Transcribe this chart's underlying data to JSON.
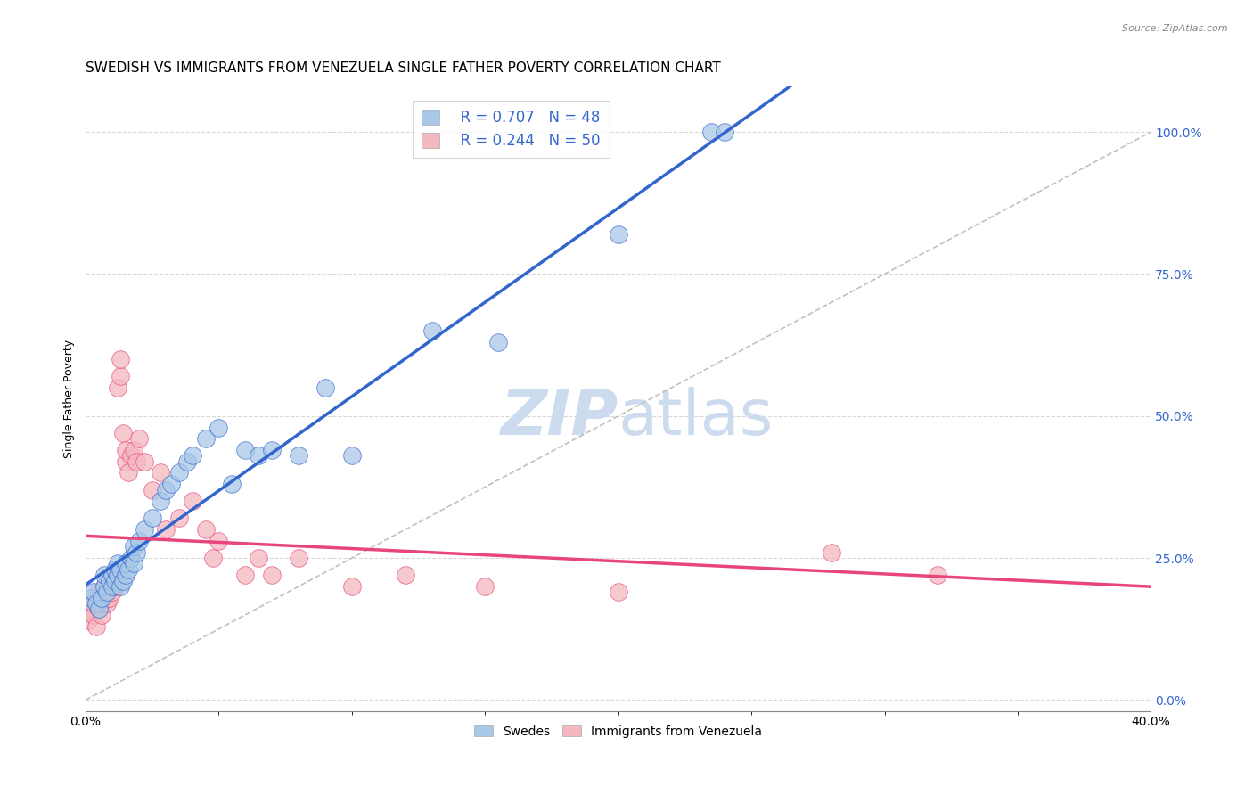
{
  "title": "SWEDISH VS IMMIGRANTS FROM VENEZUELA SINGLE FATHER POVERTY CORRELATION CHART",
  "source": "Source: ZipAtlas.com",
  "ylabel": "Single Father Poverty",
  "ytick_labels": [
    "0.0%",
    "25.0%",
    "50.0%",
    "75.0%",
    "100.0%"
  ],
  "ytick_values": [
    0.0,
    0.25,
    0.5,
    0.75,
    1.0
  ],
  "xlim": [
    0,
    0.4
  ],
  "ylim": [
    -0.02,
    1.08
  ],
  "legend_r_swedish": "R = 0.707",
  "legend_n_swedish": "N = 48",
  "legend_r_venezuela": "R = 0.244",
  "legend_n_venezuela": "N = 50",
  "color_swedish": "#a8c8e8",
  "color_venezuela": "#f4b8c0",
  "color_trendline_swedish": "#3366cc",
  "color_trendline_venezuela": "#e8457a",
  "color_diagonal": "#c0c0c0",
  "swedes_x": [
    0.002,
    0.003,
    0.004,
    0.005,
    0.006,
    0.007,
    0.007,
    0.008,
    0.009,
    0.01,
    0.01,
    0.011,
    0.011,
    0.012,
    0.012,
    0.013,
    0.013,
    0.014,
    0.015,
    0.015,
    0.016,
    0.017,
    0.018,
    0.018,
    0.019,
    0.02,
    0.022,
    0.025,
    0.028,
    0.03,
    0.032,
    0.035,
    0.038,
    0.04,
    0.045,
    0.05,
    0.055,
    0.06,
    0.065,
    0.07,
    0.08,
    0.09,
    0.1,
    0.13,
    0.155,
    0.2,
    0.235,
    0.24
  ],
  "swedes_y": [
    0.18,
    0.19,
    0.17,
    0.16,
    0.18,
    0.2,
    0.22,
    0.19,
    0.21,
    0.2,
    0.22,
    0.21,
    0.23,
    0.22,
    0.24,
    0.2,
    0.23,
    0.21,
    0.22,
    0.24,
    0.23,
    0.25,
    0.24,
    0.27,
    0.26,
    0.28,
    0.3,
    0.32,
    0.35,
    0.37,
    0.38,
    0.4,
    0.42,
    0.43,
    0.46,
    0.48,
    0.38,
    0.44,
    0.43,
    0.44,
    0.43,
    0.55,
    0.43,
    0.65,
    0.63,
    0.82,
    1.0,
    1.0
  ],
  "venezuela_x": [
    0.001,
    0.002,
    0.003,
    0.003,
    0.004,
    0.004,
    0.005,
    0.005,
    0.006,
    0.006,
    0.007,
    0.007,
    0.008,
    0.008,
    0.009,
    0.009,
    0.01,
    0.01,
    0.011,
    0.011,
    0.012,
    0.013,
    0.013,
    0.014,
    0.015,
    0.015,
    0.016,
    0.017,
    0.018,
    0.019,
    0.02,
    0.022,
    0.025,
    0.028,
    0.03,
    0.035,
    0.04,
    0.045,
    0.048,
    0.05,
    0.06,
    0.065,
    0.07,
    0.08,
    0.1,
    0.12,
    0.15,
    0.2,
    0.28,
    0.32
  ],
  "venezuela_y": [
    0.14,
    0.16,
    0.15,
    0.17,
    0.13,
    0.18,
    0.16,
    0.19,
    0.15,
    0.17,
    0.18,
    0.2,
    0.17,
    0.19,
    0.18,
    0.21,
    0.19,
    0.22,
    0.2,
    0.22,
    0.55,
    0.57,
    0.6,
    0.47,
    0.42,
    0.44,
    0.4,
    0.43,
    0.44,
    0.42,
    0.46,
    0.42,
    0.37,
    0.4,
    0.3,
    0.32,
    0.35,
    0.3,
    0.25,
    0.28,
    0.22,
    0.25,
    0.22,
    0.25,
    0.2,
    0.22,
    0.2,
    0.19,
    0.26,
    0.22
  ],
  "background_color": "#ffffff",
  "grid_color": "#d8d8d8",
  "title_fontsize": 11,
  "axis_label_fontsize": 9,
  "tick_fontsize": 9,
  "watermark_color": "#ccdcee",
  "watermark_fontsize": 52,
  "scatter_size": 200
}
